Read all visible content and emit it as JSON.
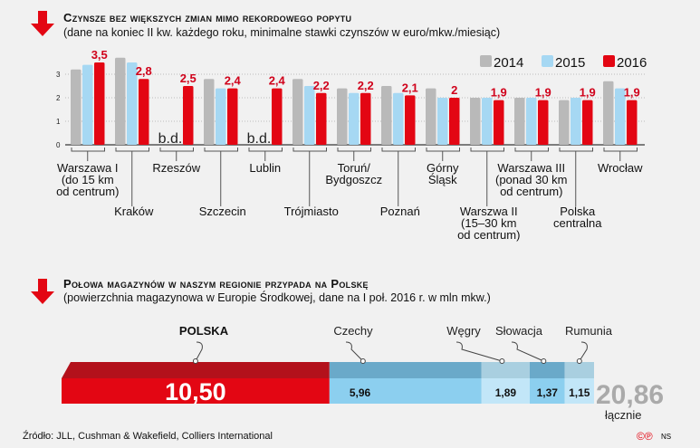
{
  "chart_data": [
    {
      "type": "bar",
      "title": "Czynsze bez większych zmian mimo rekordowego popytu",
      "subtitle": "(dane na koniec II kw. każdego roku, minimalne stawki czynszów w euro/mkw./miesiąc)",
      "categories": [
        "Warszawa I\n(do 15 km\nod centrum)",
        "Kraków",
        "Rzeszów",
        "Szczecin",
        "Lublin",
        "Trójmiasto",
        "Toruń/\nBydgoszcz",
        "Poznań",
        "Górny\nŚląsk",
        "Warszwa II\n(15–30 km\nod centrum)",
        "Warszawa III\n(ponad 30 km\nod centrum)",
        "Polska\ncentralna",
        "Wrocław"
      ],
      "series": [
        {
          "name": "2014",
          "color": "#b9b9b9",
          "values": [
            3.2,
            3.7,
            null,
            2.8,
            null,
            2.8,
            2.4,
            2.5,
            2.4,
            2.0,
            2.0,
            1.9,
            2.7
          ]
        },
        {
          "name": "2015",
          "color": "#a6d8f3",
          "values": [
            3.4,
            3.5,
            null,
            2.4,
            null,
            2.5,
            2.2,
            2.2,
            2.0,
            2.0,
            2.0,
            2.0,
            2.4
          ]
        },
        {
          "name": "2016",
          "color": "#e30613",
          "values": [
            3.5,
            2.8,
            2.5,
            2.4,
            2.4,
            2.2,
            2.2,
            2.1,
            2.0,
            1.9,
            1.9,
            1.9,
            1.9
          ]
        }
      ],
      "data_labels": [
        "3,5",
        "2,8",
        "2,5",
        "2,4",
        "2,4",
        "2,2",
        "2,2",
        "2,1",
        "2",
        "1,9",
        "1,9",
        "1,9",
        "1,9"
      ],
      "missing_label": "b.d.",
      "yticks": [
        "0",
        "1",
        "2",
        "3"
      ],
      "ylim": [
        0,
        3.8
      ],
      "grid": true,
      "legend": "top-right"
    },
    {
      "type": "bar",
      "title": "Połowa magazynów w naszym regionie przypada na Polskę",
      "subtitle": "(powierzchnia magazynowa w Europie Środkowej, dane na I poł. 2016 r. w mln mkw.)",
      "stacked": true,
      "categories": [
        "POLSKA",
        "Czechy",
        "Węgry",
        "Słowacja",
        "Rumunia"
      ],
      "values": [
        10.5,
        5.96,
        1.89,
        1.37,
        1.15
      ],
      "labels": [
        "10,50",
        "5,96",
        "1,89",
        "1,37",
        "1,15"
      ],
      "colors": [
        "#e30613",
        "#8ccfef",
        "#c2e6f8",
        "#8ccfef",
        "#c2e6f8"
      ],
      "total": "20,86",
      "total_label": "łącznie"
    }
  ],
  "footer": {
    "source": "Źródło: JLL, Cushman & Wakefield, Colliers International",
    "credit": "NS"
  }
}
